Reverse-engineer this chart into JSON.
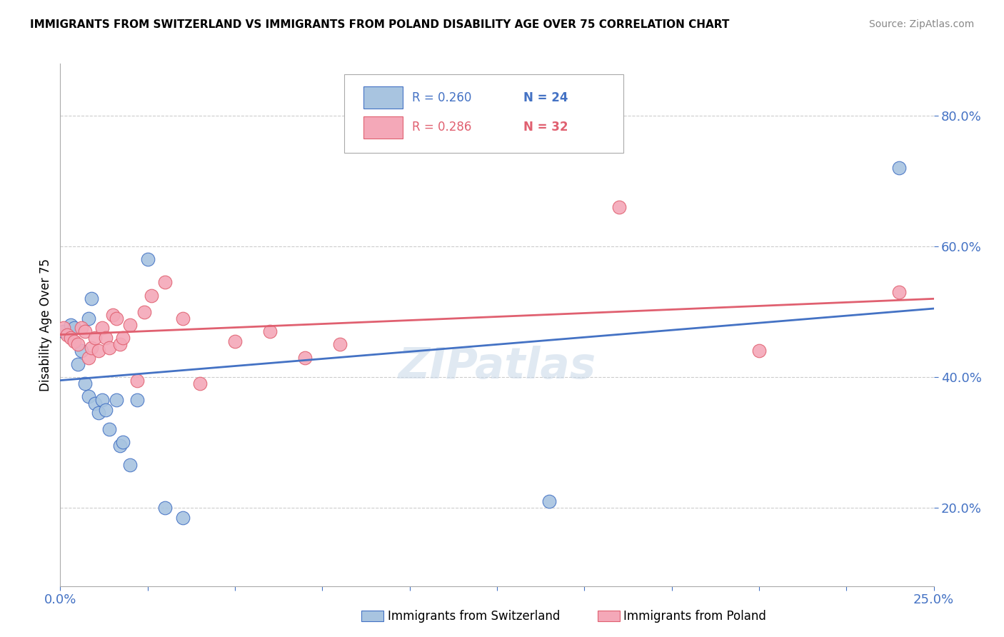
{
  "title": "IMMIGRANTS FROM SWITZERLAND VS IMMIGRANTS FROM POLAND DISABILITY AGE OVER 75 CORRELATION CHART",
  "source": "Source: ZipAtlas.com",
  "ylabel": "Disability Age Over 75",
  "xlim": [
    0.0,
    0.25
  ],
  "ylim": [
    0.08,
    0.88
  ],
  "xticks": [
    0.0,
    0.025,
    0.05,
    0.075,
    0.1,
    0.125,
    0.15,
    0.175,
    0.2,
    0.225,
    0.25
  ],
  "yticks": [
    0.2,
    0.4,
    0.6,
    0.8
  ],
  "ytick_labels": [
    "20.0%",
    "40.0%",
    "60.0%",
    "80.0%"
  ],
  "legend_r1": "R = 0.260",
  "legend_n1": "N = 24",
  "legend_r2": "R = 0.286",
  "legend_n2": "N = 32",
  "color_swiss": "#a8c4e0",
  "color_poland": "#f4a8b8",
  "line_color_swiss": "#4472c4",
  "line_color_poland": "#e06070",
  "watermark": "ZIPatlas",
  "swiss_x": [
    0.001,
    0.003,
    0.004,
    0.005,
    0.006,
    0.007,
    0.008,
    0.008,
    0.009,
    0.01,
    0.011,
    0.012,
    0.013,
    0.014,
    0.016,
    0.017,
    0.018,
    0.02,
    0.022,
    0.025,
    0.03,
    0.035,
    0.14,
    0.24
  ],
  "swiss_y": [
    0.47,
    0.48,
    0.475,
    0.42,
    0.44,
    0.39,
    0.37,
    0.49,
    0.52,
    0.36,
    0.345,
    0.365,
    0.35,
    0.32,
    0.365,
    0.295,
    0.3,
    0.265,
    0.365,
    0.58,
    0.2,
    0.185,
    0.21,
    0.72
  ],
  "poland_x": [
    0.001,
    0.002,
    0.003,
    0.004,
    0.005,
    0.006,
    0.007,
    0.008,
    0.009,
    0.01,
    0.011,
    0.012,
    0.013,
    0.014,
    0.015,
    0.016,
    0.017,
    0.018,
    0.02,
    0.022,
    0.024,
    0.026,
    0.03,
    0.035,
    0.04,
    0.05,
    0.06,
    0.07,
    0.08,
    0.16,
    0.2,
    0.24
  ],
  "poland_y": [
    0.475,
    0.465,
    0.46,
    0.455,
    0.45,
    0.475,
    0.47,
    0.43,
    0.445,
    0.46,
    0.44,
    0.475,
    0.46,
    0.445,
    0.495,
    0.49,
    0.45,
    0.46,
    0.48,
    0.395,
    0.5,
    0.525,
    0.545,
    0.49,
    0.39,
    0.455,
    0.47,
    0.43,
    0.45,
    0.66,
    0.44,
    0.53
  ],
  "swiss_trend_x": [
    0.0,
    0.25
  ],
  "swiss_trend_y": [
    0.395,
    0.505
  ],
  "poland_trend_x": [
    0.0,
    0.25
  ],
  "poland_trend_y": [
    0.465,
    0.52
  ]
}
